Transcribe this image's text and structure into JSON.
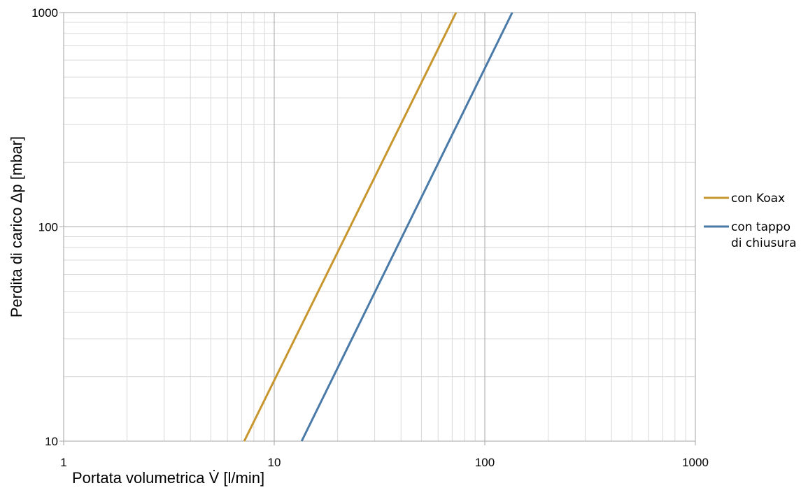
{
  "chart_data": {
    "type": "line",
    "title": "",
    "xlabel": "Portata volumetrica V̇ [l/min]",
    "ylabel": "Perdita di carico Δp [mbar]",
    "x_scale": "log",
    "y_scale": "log",
    "xlim": [
      1,
      1000
    ],
    "ylim": [
      10,
      1000
    ],
    "x_ticks": [
      "1",
      "10",
      "100",
      "1000"
    ],
    "y_ticks": [
      "10",
      "100",
      "1000"
    ],
    "grid": true,
    "legend_position": "right",
    "series": [
      {
        "name": "con Koax",
        "color": "#c8962e",
        "x": [
          7.2,
          73
        ],
        "y": [
          10,
          1000
        ]
      },
      {
        "name": "con tappo di chiusura",
        "name_lines": [
          "con tappo",
          "di chiusura"
        ],
        "color": "#4a7aa7",
        "x": [
          13.5,
          135
        ],
        "y": [
          10,
          1000
        ]
      }
    ]
  }
}
